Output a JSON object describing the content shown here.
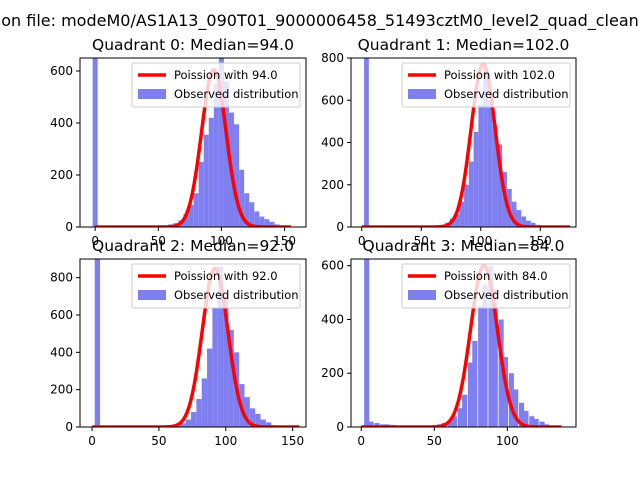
{
  "figure": {
    "title": "on file: modeM0/AS1A13_090T01_9000006458_51493cztM0_level2_quad_clean"
  },
  "colors": {
    "hist": "#7f7ff0",
    "fit": "#ff0000",
    "axes": "#000000"
  },
  "chart_data": [
    {
      "type": "bar",
      "title": "Quadrant 0: Median=94.0",
      "xlim": [
        -12,
        167
      ],
      "ylim": [
        0,
        650
      ],
      "xticks": [
        "0",
        "50",
        "100",
        "150"
      ],
      "xtick_values": [
        0,
        50,
        100,
        150
      ],
      "yticks": [
        "0",
        "200",
        "400",
        "600"
      ],
      "ytick_values": [
        0,
        200,
        400,
        600
      ],
      "legend": [
        "Poission with 94.0",
        "Observed distribution"
      ],
      "legend_position": "top-right",
      "bin_width": 4,
      "hist": [
        [
          -2,
          650
        ],
        [
          54,
          5
        ],
        [
          58,
          10
        ],
        [
          62,
          15
        ],
        [
          66,
          25
        ],
        [
          70,
          50
        ],
        [
          74,
          85
        ],
        [
          78,
          130
        ],
        [
          82,
          250
        ],
        [
          86,
          355
        ],
        [
          90,
          420
        ],
        [
          94,
          550
        ],
        [
          98,
          650
        ],
        [
          102,
          560
        ],
        [
          106,
          440
        ],
        [
          110,
          395
        ],
        [
          114,
          220
        ],
        [
          118,
          130
        ],
        [
          122,
          95
        ],
        [
          126,
          60
        ],
        [
          130,
          40
        ],
        [
          134,
          30
        ],
        [
          138,
          20
        ],
        [
          142,
          10
        ],
        [
          146,
          5
        ]
      ],
      "fit": {
        "label": "Poission with 94.0",
        "mean": 94.0,
        "peak": 605,
        "x_range": [
          0,
          155
        ]
      }
    },
    {
      "type": "bar",
      "title": "Quadrant 1: Median=102.0",
      "xlim": [
        -9,
        180
      ],
      "ylim": [
        0,
        800
      ],
      "xticks": [
        "0",
        "50",
        "100",
        "150"
      ],
      "xtick_values": [
        0,
        50,
        100,
        150
      ],
      "yticks": [
        "0",
        "200",
        "400",
        "600",
        "800"
      ],
      "ytick_values": [
        0,
        200,
        400,
        600,
        800
      ],
      "legend": [
        "Poission with 102.0",
        "Observed distribution"
      ],
      "legend_position": "top-right",
      "bin_width": 4,
      "hist": [
        [
          2,
          800
        ],
        [
          62,
          5
        ],
        [
          66,
          10
        ],
        [
          70,
          20
        ],
        [
          74,
          40
        ],
        [
          78,
          60
        ],
        [
          82,
          120
        ],
        [
          86,
          200
        ],
        [
          90,
          310
        ],
        [
          94,
          450
        ],
        [
          98,
          580
        ],
        [
          102,
          760
        ],
        [
          106,
          600
        ],
        [
          110,
          480
        ],
        [
          114,
          390
        ],
        [
          118,
          260
        ],
        [
          122,
          180
        ],
        [
          126,
          120
        ],
        [
          130,
          80
        ],
        [
          134,
          50
        ],
        [
          138,
          30
        ],
        [
          142,
          20
        ],
        [
          146,
          10
        ],
        [
          150,
          5
        ]
      ],
      "fit": {
        "label": "Poission with 102.0",
        "mean": 102.0,
        "peak": 770,
        "x_range": [
          0,
          175
        ]
      }
    },
    {
      "type": "bar",
      "title": "Quadrant 2: Median=92.0",
      "xlim": [
        -9,
        160
      ],
      "ylim": [
        0,
        900
      ],
      "xticks": [
        "0",
        "50",
        "100",
        "150"
      ],
      "xtick_values": [
        0,
        50,
        100,
        150
      ],
      "yticks": [
        "0",
        "200",
        "400",
        "600",
        "800"
      ],
      "ytick_values": [
        0,
        200,
        400,
        600,
        800
      ],
      "legend": [
        "Poission with 92.0",
        "Observed distribution"
      ],
      "legend_position": "top-right",
      "bin_width": 4,
      "hist": [
        [
          2,
          900
        ],
        [
          58,
          5
        ],
        [
          62,
          10
        ],
        [
          66,
          20
        ],
        [
          70,
          40
        ],
        [
          74,
          80
        ],
        [
          78,
          150
        ],
        [
          82,
          260
        ],
        [
          86,
          420
        ],
        [
          90,
          640
        ],
        [
          94,
          860
        ],
        [
          98,
          700
        ],
        [
          102,
          520
        ],
        [
          106,
          400
        ],
        [
          110,
          230
        ],
        [
          114,
          160
        ],
        [
          118,
          100
        ],
        [
          122,
          70
        ],
        [
          126,
          40
        ],
        [
          130,
          25
        ],
        [
          134,
          10
        ],
        [
          138,
          5
        ]
      ],
      "fit": {
        "label": "Poission with 92.0",
        "mean": 92.0,
        "peak": 850,
        "x_range": [
          0,
          155
        ]
      }
    },
    {
      "type": "bar",
      "title": "Quadrant 3: Median=84.0",
      "xlim": [
        -7,
        147
      ],
      "ylim": [
        0,
        625
      ],
      "xticks": [
        "0",
        "50",
        "100"
      ],
      "xtick_values": [
        0,
        50,
        100
      ],
      "yticks": [
        "0",
        "200",
        "400",
        "600"
      ],
      "ytick_values": [
        0,
        200,
        400,
        600
      ],
      "legend": [
        "Poission with 84.0",
        "Observed distribution"
      ],
      "legend_position": "top-right",
      "bin_width": 3.5,
      "hist": [
        [
          2,
          625
        ],
        [
          5,
          20
        ],
        [
          9,
          15
        ],
        [
          13,
          10
        ],
        [
          16,
          10
        ],
        [
          20,
          8
        ],
        [
          24,
          5
        ],
        [
          48,
          5
        ],
        [
          52,
          10
        ],
        [
          55,
          15
        ],
        [
          59,
          25
        ],
        [
          62,
          40
        ],
        [
          66,
          70
        ],
        [
          69,
          120
        ],
        [
          73,
          240
        ],
        [
          76,
          320
        ],
        [
          80,
          450
        ],
        [
          83,
          530
        ],
        [
          87,
          600
        ],
        [
          90,
          510
        ],
        [
          94,
          400
        ],
        [
          97,
          260
        ],
        [
          101,
          200
        ],
        [
          104,
          140
        ],
        [
          108,
          90
        ],
        [
          111,
          60
        ],
        [
          115,
          40
        ],
        [
          118,
          30
        ],
        [
          122,
          20
        ],
        [
          125,
          10
        ]
      ],
      "fit": {
        "label": "Poission with 84.0",
        "mean": 84.0,
        "peak": 600,
        "x_range": [
          0,
          137
        ]
      }
    }
  ]
}
